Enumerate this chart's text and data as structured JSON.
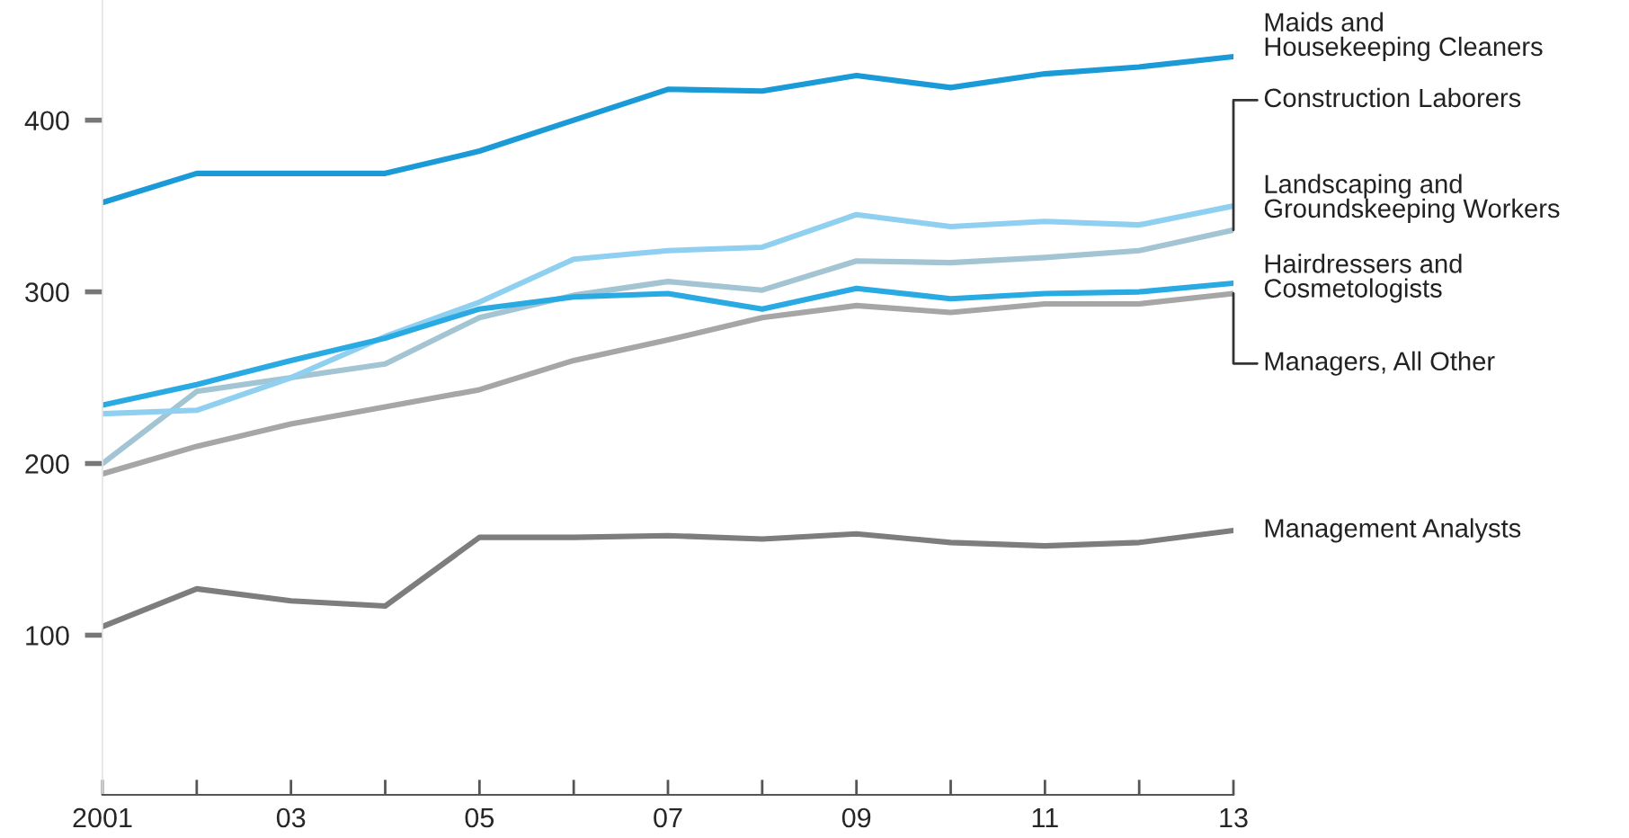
{
  "chart_data": {
    "type": "line",
    "x": [
      2001,
      2002,
      2003,
      2004,
      2005,
      2006,
      2007,
      2008,
      2009,
      2010,
      2011,
      2012,
      2013
    ],
    "series": [
      {
        "name": "Maids and\nHousekeeping Cleaners",
        "color": "#1a9ad6",
        "values": [
          352,
          369,
          369,
          369,
          382,
          400,
          418,
          417,
          426,
          419,
          427,
          431,
          437
        ]
      },
      {
        "name": "Construction Laborers",
        "color": "#a3c4d2",
        "values": [
          200,
          242,
          250,
          258,
          285,
          298,
          306,
          301,
          318,
          317,
          320,
          324,
          336
        ]
      },
      {
        "name": "Landscaping and\nGroundskeeping Workers",
        "color": "#8fd0f0",
        "values": [
          229,
          231,
          250,
          274,
          294,
          319,
          324,
          326,
          345,
          338,
          341,
          339,
          350
        ]
      },
      {
        "name": "Hairdressers and\nCosmetologists",
        "color": "#2aaae2",
        "values": [
          234,
          246,
          260,
          273,
          290,
          297,
          299,
          290,
          302,
          296,
          299,
          300,
          305
        ]
      },
      {
        "name": "Managers, All Other",
        "color": "#a6a6a6",
        "values": [
          194,
          210,
          223,
          233,
          243,
          260,
          272,
          285,
          292,
          288,
          293,
          293,
          299
        ]
      },
      {
        "name": "Management Analysts",
        "color": "#7d7d7d",
        "values": [
          105,
          127,
          120,
          117,
          157,
          157,
          158,
          156,
          159,
          154,
          152,
          154,
          161
        ]
      }
    ],
    "xlim": [
      2001,
      2013
    ],
    "xticks": [
      2001,
      {
        "value": 2002,
        "label": null
      },
      {
        "value": 2003,
        "label": "03"
      },
      {
        "value": 2004,
        "label": null
      },
      {
        "value": 2005,
        "label": "05"
      },
      {
        "value": 2006,
        "label": null
      },
      {
        "value": 2007,
        "label": "07"
      },
      {
        "value": 2008,
        "label": null
      },
      {
        "value": 2009,
        "label": "09"
      },
      {
        "value": 2010,
        "label": null
      },
      {
        "value": 2011,
        "label": "11"
      },
      {
        "value": 2012,
        "label": null
      },
      {
        "value": 2013,
        "label": "13"
      }
    ],
    "ylim": [
      7,
      470
    ],
    "yticks": [
      100,
      200,
      300,
      400
    ],
    "grid": false,
    "legend": false,
    "marker": "none",
    "line_style": "solid"
  }
}
